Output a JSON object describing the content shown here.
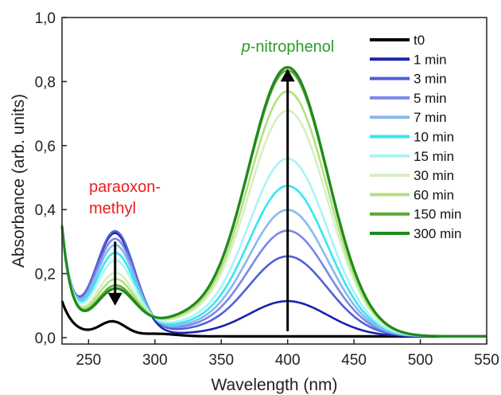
{
  "chart_data": {
    "type": "line",
    "xlabel": "Wavelength (nm)",
    "ylabel": "Absorbance (arb. units)",
    "xlim": [
      230,
      550
    ],
    "ylim": [
      -0.02,
      1.0
    ],
    "x_ticks": [
      "250",
      "300",
      "350",
      "400",
      "450",
      "500",
      "550"
    ],
    "y_ticks": [
      "0,0",
      "0,2",
      "0,4",
      "0,6",
      "0,8",
      "1,0"
    ],
    "grid": false,
    "legend_position": "top-right",
    "series": [
      {
        "name": "t0",
        "color": "#000000",
        "peak400": 0.0,
        "peak270": 0.045
      },
      {
        "name": "1 min",
        "color": "#1a22b0",
        "peak400": 0.11,
        "peak270": 0.32
      },
      {
        "name": "3 min",
        "color": "#4f5fd8",
        "peak400": 0.25,
        "peak270": 0.325
      },
      {
        "name": "5 min",
        "color": "#7b88e6",
        "peak400": 0.33,
        "peak270": 0.3
      },
      {
        "name": "7 min",
        "color": "#8ab8f0",
        "peak400": 0.395,
        "peak270": 0.28
      },
      {
        "name": "10 min",
        "color": "#35e6f0",
        "peak400": 0.47,
        "peak270": 0.255
      },
      {
        "name": "15 min",
        "color": "#a8f4f6",
        "peak400": 0.555,
        "peak270": 0.23
      },
      {
        "name": "30 min",
        "color": "#d6efc4",
        "peak400": 0.705,
        "peak270": 0.19
      },
      {
        "name": "60 min",
        "color": "#b4e07a",
        "peak400": 0.765,
        "peak270": 0.17
      },
      {
        "name": "150 min",
        "color": "#5ea832",
        "peak400": 0.83,
        "peak270": 0.15
      },
      {
        "name": "300 min",
        "color": "#1e8a1e",
        "peak400": 0.84,
        "peak270": 0.14
      }
    ],
    "annotations": {
      "reactant": [
        "paraoxon-",
        "methyl"
      ],
      "reactant_color": "#ee1c1c",
      "product_prefix": "p",
      "product_suffix": "-nitrophenol",
      "product_color": "#2a9d2a",
      "down_arrow": {
        "x": 270,
        "from": 0.3,
        "to": 0.1
      },
      "up_arrow": {
        "x": 400,
        "from": 0.02,
        "to": 0.84
      }
    }
  }
}
